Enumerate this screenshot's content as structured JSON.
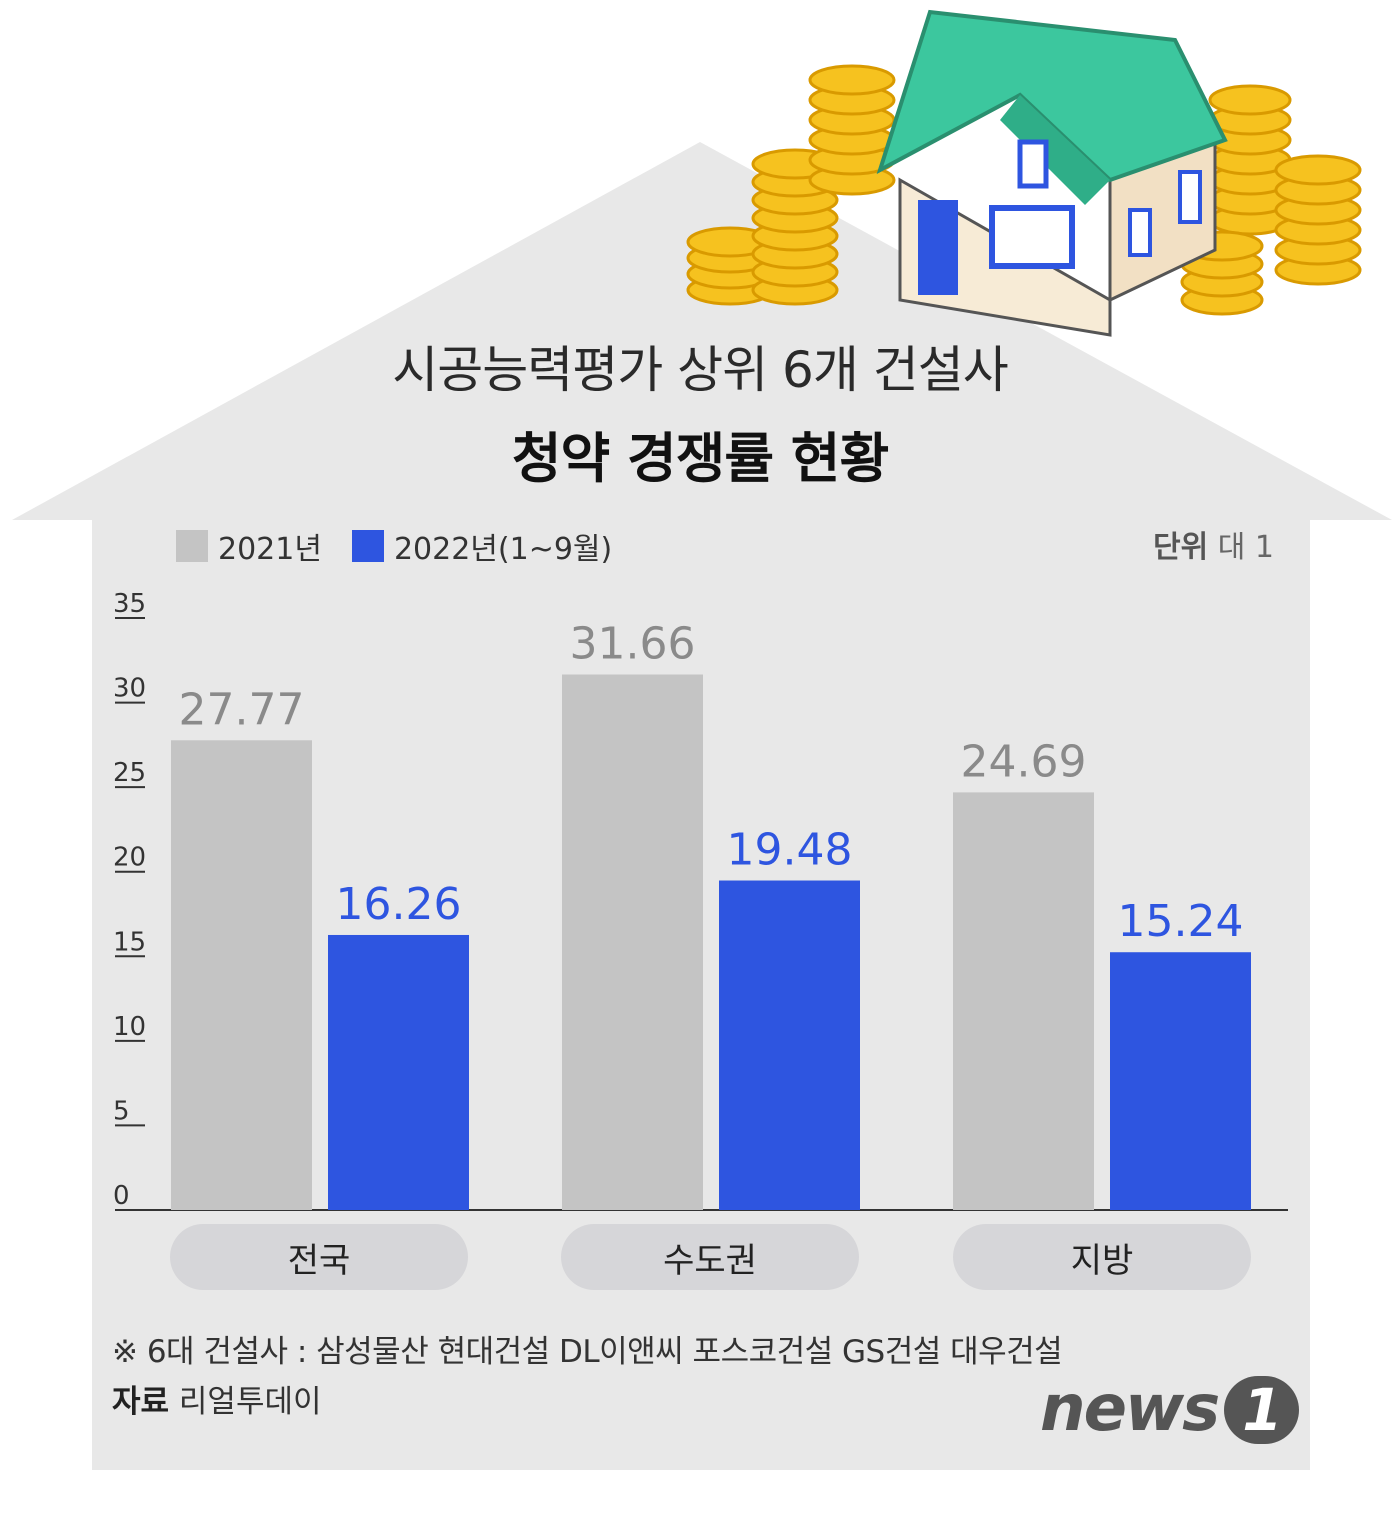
{
  "title": "시공능력평가 상위 6개 건설사",
  "subtitle": "청약 경쟁률 현황",
  "unit_label": "단위",
  "unit_value": "대 1",
  "note": "※ 6대 건설사 : 삼성물산 현대건설 DL이앤씨 포스코건설 GS건설 대우건설",
  "source_label": "자료",
  "source_value": "리얼투데이",
  "logo": {
    "text": "news",
    "mark": "1"
  },
  "colors": {
    "series_2021": "#c4c4c4",
    "series_2022": "#2e55e0",
    "background": "#e8e8e8",
    "label_2021": "#8a8a8a",
    "label_2022": "#2e55e0"
  },
  "chart_data": {
    "type": "bar",
    "categories": [
      "전국",
      "수도권",
      "지방"
    ],
    "series": [
      {
        "name": "2021년",
        "values": [
          27.77,
          31.66,
          24.69
        ],
        "labels": [
          "27.77",
          "31.66",
          "24.69"
        ]
      },
      {
        "name": "2022년(1~9월)",
        "values": [
          16.26,
          19.48,
          15.24
        ],
        "labels": [
          "16.26",
          "19.48",
          "15.24"
        ]
      }
    ],
    "ylim": [
      0,
      35
    ],
    "yticks": [
      "0",
      "5",
      "10",
      "15",
      "20",
      "25",
      "30",
      "35"
    ],
    "legend": "top-left",
    "grid": false
  }
}
